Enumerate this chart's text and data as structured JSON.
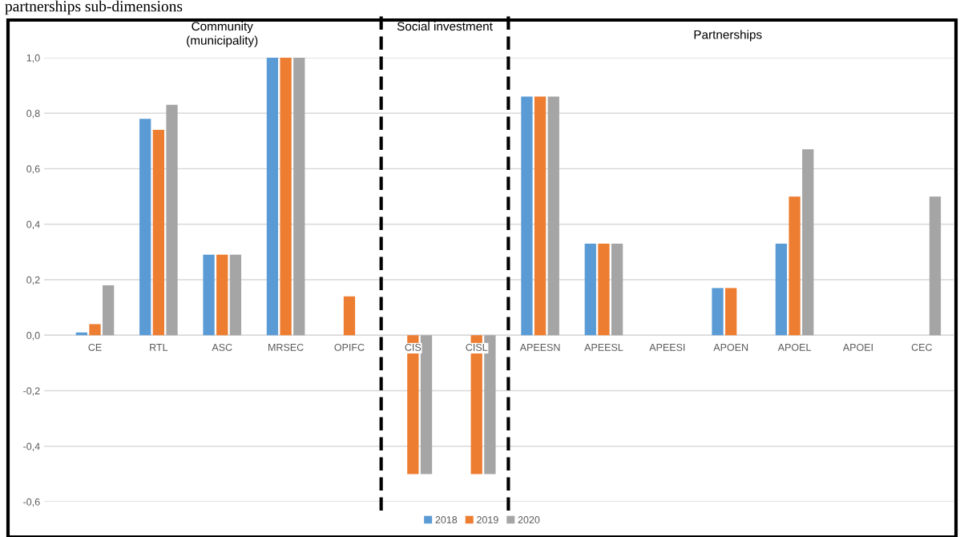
{
  "chart_data": {
    "type": "bar",
    "title": "partnerships sub-dimensions",
    "categories": [
      "CE",
      "RTL",
      "ASC",
      "MRSEC",
      "OPIFC",
      "CIS",
      "CISL",
      "APEESN",
      "APEESL",
      "APEESI",
      "APOEN",
      "APOEL",
      "APOEI",
      "CEC"
    ],
    "series": [
      {
        "name": "2018",
        "color": "#5b9bd5",
        "values": [
          0.01,
          0.78,
          0.29,
          1.0,
          null,
          null,
          null,
          0.86,
          0.33,
          null,
          0.17,
          0.33,
          null,
          null
        ]
      },
      {
        "name": "2019",
        "color": "#ed7d31",
        "values": [
          0.04,
          0.74,
          0.29,
          1.0,
          0.14,
          -0.5,
          -0.5,
          0.86,
          0.33,
          null,
          0.17,
          0.5,
          null,
          null
        ]
      },
      {
        "name": "2020",
        "color": "#a5a5a5",
        "values": [
          0.18,
          0.83,
          0.29,
          1.0,
          null,
          -0.5,
          -0.5,
          0.86,
          0.33,
          null,
          null,
          0.67,
          null,
          0.5
        ]
      }
    ],
    "ylim": [
      -0.6,
      1.0
    ],
    "yticks": [
      {
        "value": -0.6,
        "label": "-0,6"
      },
      {
        "value": -0.4,
        "label": "-0,4"
      },
      {
        "value": -0.2,
        "label": "-0,2"
      },
      {
        "value": 0,
        "label": "0,0"
      },
      {
        "value": 0.2,
        "label": "0,2"
      },
      {
        "value": 0.4,
        "label": "0,4"
      },
      {
        "value": 0.6,
        "label": "0,6"
      },
      {
        "value": 0.8,
        "label": "0,8"
      },
      {
        "value": 1.0,
        "label": "1,0"
      }
    ],
    "annotations": [
      "Community\n(municipality)",
      "Social investment",
      "Partnerships"
    ],
    "grid": "y",
    "legend": "bottom"
  }
}
